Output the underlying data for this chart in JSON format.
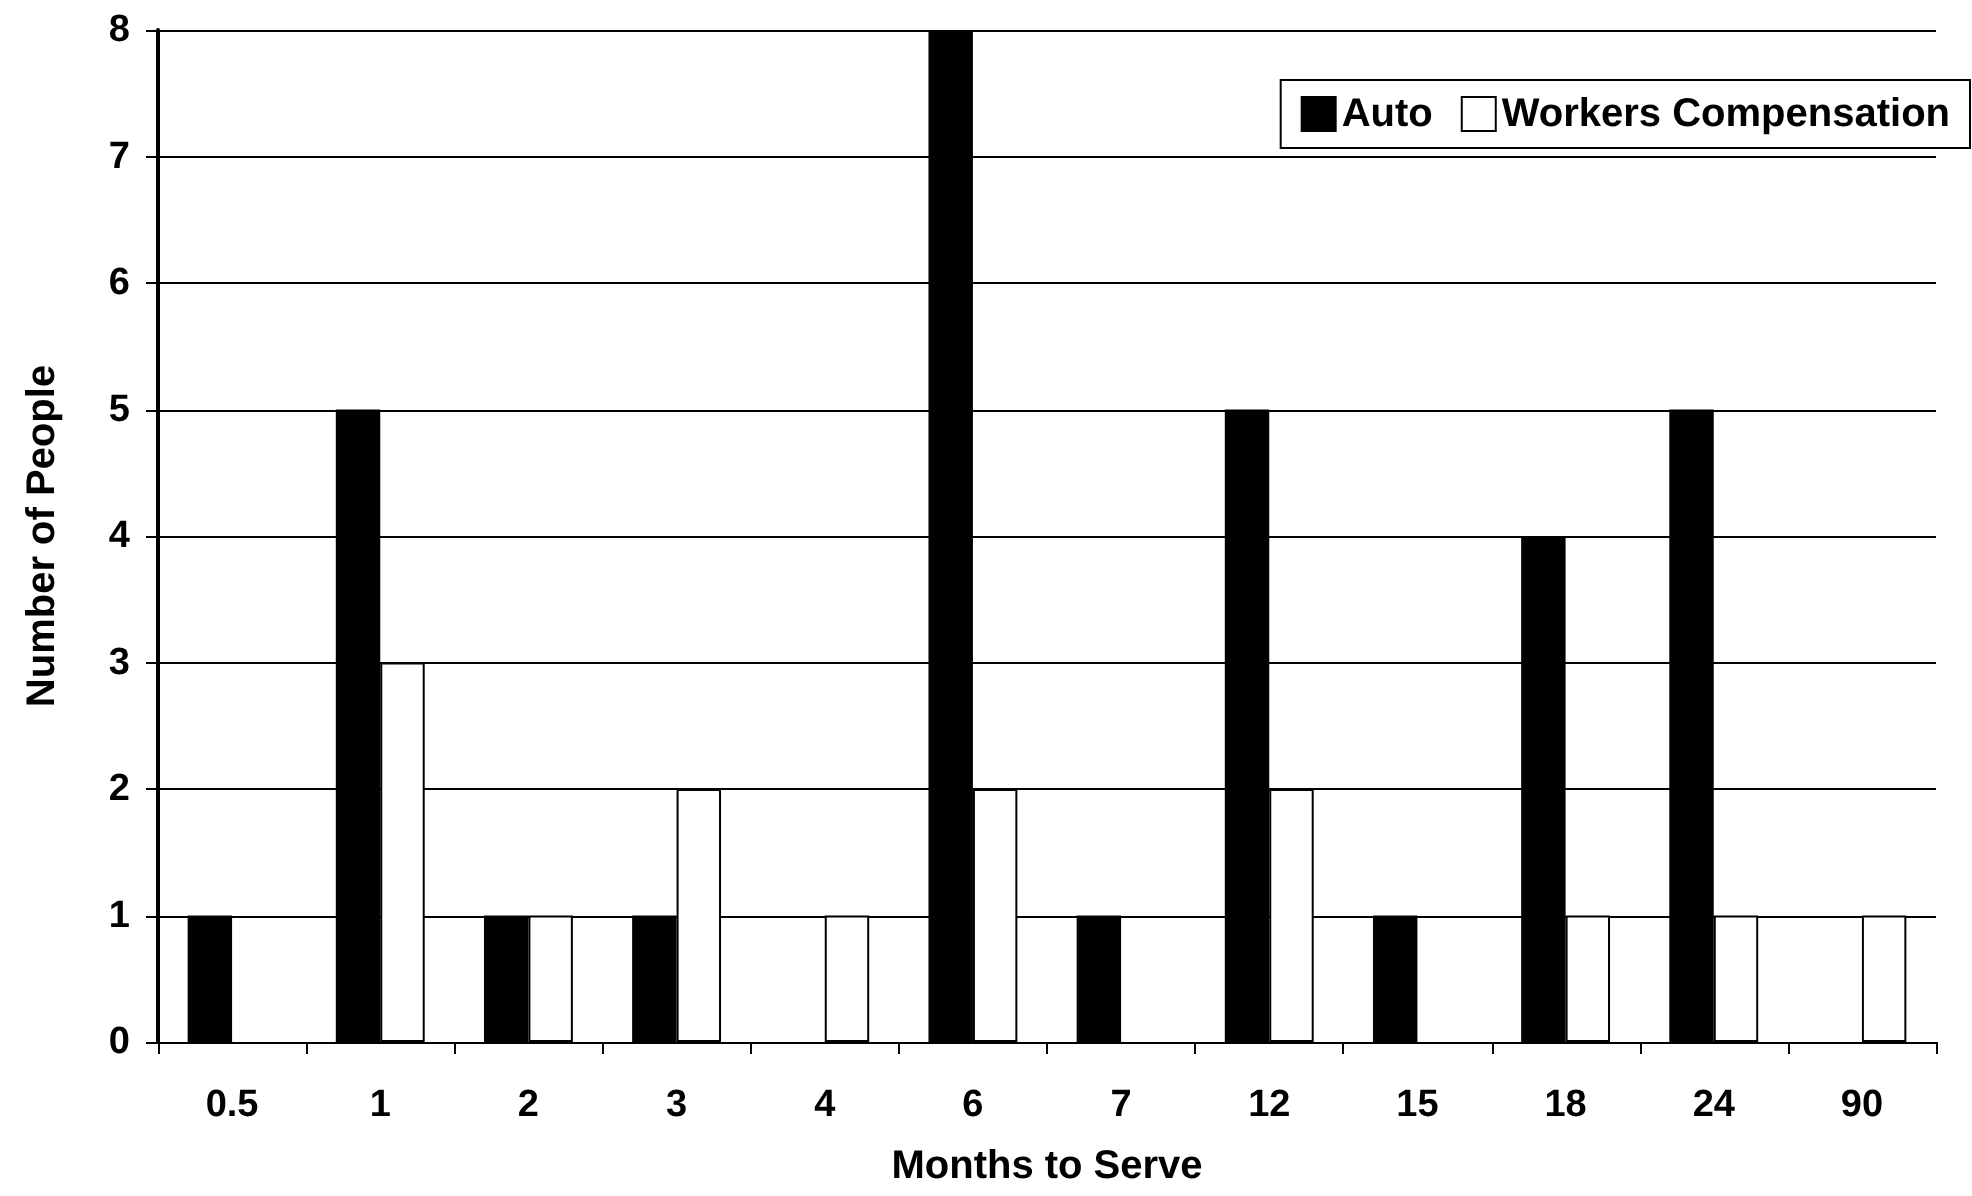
{
  "chart_data": {
    "type": "bar",
    "xlabel": "Months to Serve",
    "ylabel": "Number of People",
    "categories": [
      "0.5",
      "1",
      "2",
      "3",
      "4",
      "6",
      "7",
      "12",
      "15",
      "18",
      "24",
      "90"
    ],
    "series": [
      {
        "name": "Auto",
        "color": "#000000",
        "values": [
          1,
          5,
          1,
          1,
          0,
          8,
          1,
          5,
          1,
          4,
          5,
          0
        ]
      },
      {
        "name": "Workers Compensation",
        "color": "#ffffff",
        "values": [
          0,
          3,
          1,
          2,
          1,
          2,
          0,
          2,
          0,
          1,
          1,
          1
        ]
      }
    ],
    "ylim": [
      0,
      8
    ],
    "yticks": [
      0,
      1,
      2,
      3,
      4,
      5,
      6,
      7,
      8
    ],
    "grid": "y",
    "legend": "top right"
  }
}
